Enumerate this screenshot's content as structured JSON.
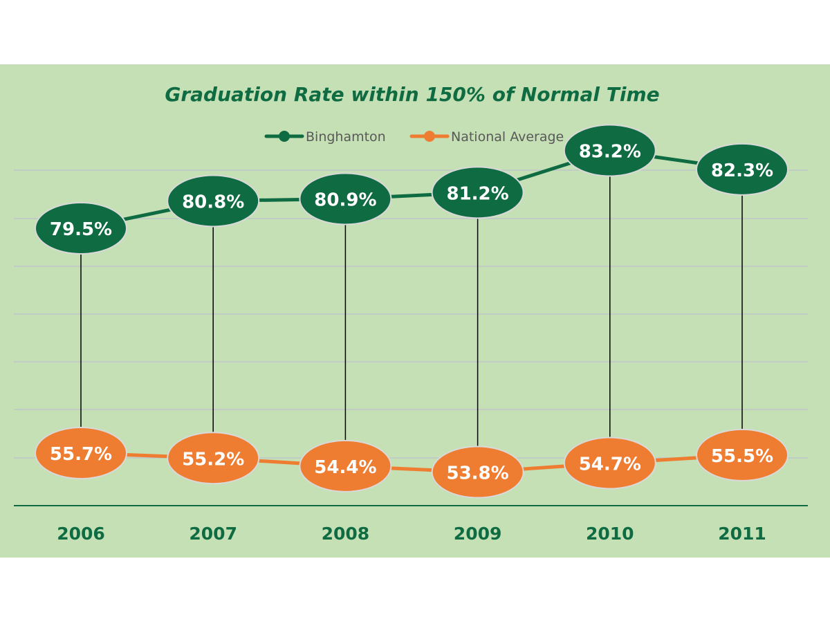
{
  "chart_data": {
    "type": "line",
    "title": "Graduation Rate within 150% of Normal Time",
    "categories": [
      "2006",
      "2007",
      "2008",
      "2009",
      "2010",
      "2011"
    ],
    "series": [
      {
        "name": "Binghamton",
        "values": [
          79.5,
          80.8,
          80.9,
          81.2,
          83.2,
          82.3
        ],
        "labels": [
          "79.5%",
          "80.8%",
          "80.9%",
          "81.2%",
          "83.2%",
          "82.3%"
        ],
        "color": "#0f6b42"
      },
      {
        "name": "National Average",
        "values": [
          55.7,
          55.2,
          54.4,
          53.8,
          54.7,
          55.5
        ],
        "labels": [
          "55.7%",
          "55.2%",
          "54.4%",
          "53.8%",
          "54.7%",
          "55.5%"
        ],
        "color": "#ee7d31"
      }
    ],
    "legend": "top-center",
    "grid": true,
    "drop_lines": true,
    "colors": {
      "plot_background": "#c5e0b4",
      "title": "#0f6b42",
      "axis": "#0f6b42",
      "gridline": "#bfbfcf",
      "drop_line": "#000000",
      "label_text": "#ffffff",
      "legend_text": "#595959",
      "marker_border": "#d9d9d9"
    }
  }
}
